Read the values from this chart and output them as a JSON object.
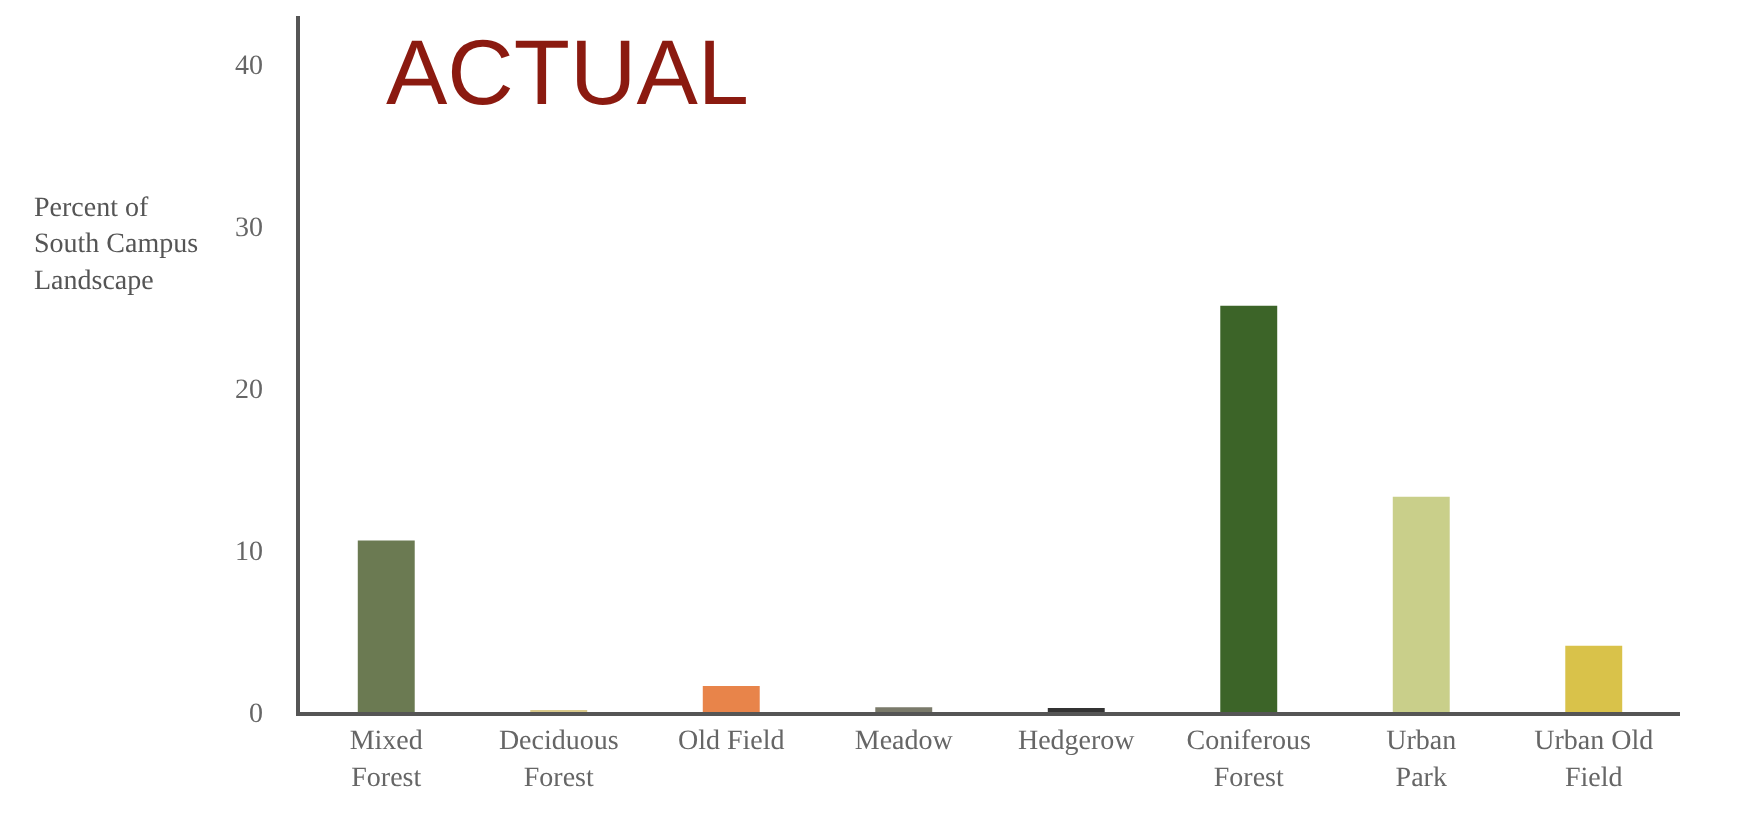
{
  "chart_data": {
    "type": "bar",
    "title": "ACTUAL",
    "ylabel": "Percent of South Campus Landscape",
    "categories": [
      "Mixed Forest",
      "Deciduous Forest",
      "Old Field",
      "Meadow",
      "Hedgerow",
      "Coniferous Forest",
      "Urban Park",
      "Urban Old Field"
    ],
    "values": [
      10.6,
      0.1,
      1.6,
      0.3,
      0.2,
      25.1,
      13.3,
      4.1
    ],
    "colors": [
      "#6b7a52",
      "#d9c98a",
      "#e8844a",
      "#7a7a6a",
      "#333333",
      "#3c6428",
      "#c9cf8a",
      "#d9c24a"
    ],
    "ylim": [
      0,
      43
    ],
    "yticks": [
      0,
      10,
      20,
      30,
      40
    ],
    "grid": false
  }
}
